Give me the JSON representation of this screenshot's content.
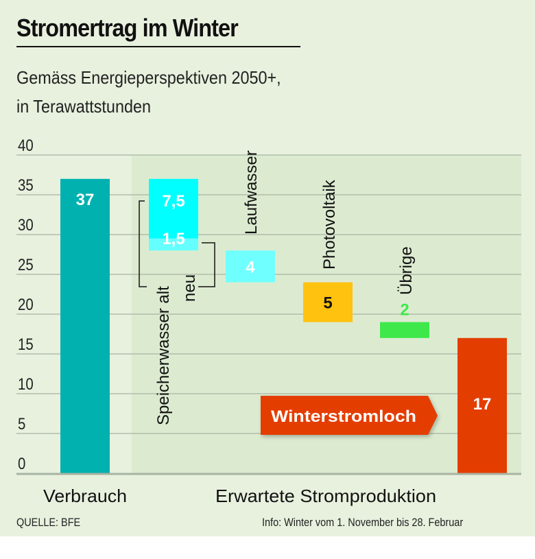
{
  "title": "Stromertrag im Winter",
  "subtitle_line1": "Gemäss Energieperspektiven 2050+,",
  "subtitle_line2": "in Terawattstunden",
  "source": "QUELLE: BFE",
  "info": "Info: Winter vom 1. November bis 28. Februar",
  "chart_data": {
    "type": "bar",
    "subtype": "waterfall",
    "title": "Stromertrag im Winter",
    "ylabel": "Terawattstunden",
    "ylim": [
      0,
      40
    ],
    "yticks": [
      0,
      5,
      10,
      15,
      20,
      25,
      30,
      35,
      40
    ],
    "group_labels": [
      "Verbrauch",
      "Erwartete Stromproduktion"
    ],
    "bars": [
      {
        "name": "Verbrauch",
        "label": "37",
        "start": 0,
        "end": 37,
        "color": "#00b1b0",
        "label_color": "#ffffff"
      },
      {
        "name": "Speicherwasser alt",
        "label": "7,5",
        "start": 29.5,
        "end": 37,
        "color": "#00ffff",
        "label_color": "#ffffff"
      },
      {
        "name": "Speicherwasser neu",
        "label": "1,5",
        "start": 28,
        "end": 29.5,
        "color": "#66ffff",
        "label_color": "#ffffff"
      },
      {
        "name": "Laufwasser",
        "label": "4",
        "start": 24,
        "end": 28,
        "color": "#70ffff",
        "label_color": "#ffffff"
      },
      {
        "name": "Photovoltaik",
        "label": "5",
        "start": 19,
        "end": 24,
        "color": "#ffc20e",
        "label_color": "#111111"
      },
      {
        "name": "Übrige",
        "label": "2",
        "start": 17,
        "end": 19,
        "color": "#3ee84a",
        "label_color": "#3ee84a"
      },
      {
        "name": "Winterstromloch",
        "label": "17",
        "start": 0,
        "end": 17,
        "color": "#e43d00",
        "label_color": "#ffffff"
      }
    ],
    "category_labels": {
      "speicher": "Speicherwasser alt",
      "neu": "neu",
      "lauf": "Laufwasser",
      "pv": "Photovoltaik",
      "uebrige": "Übrige"
    },
    "callout": "Winterstromloch"
  }
}
